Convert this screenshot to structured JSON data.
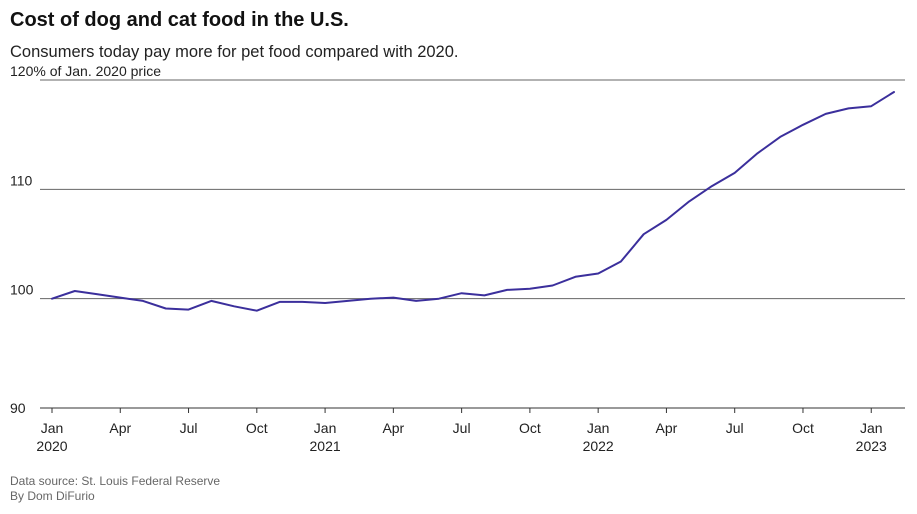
{
  "title": "Cost of dog and cat food in the U.S.",
  "subtitle": "Consumers today pay more for pet food compared with 2020.",
  "footer": {
    "source": "Data source: St. Louis Federal Reserve",
    "author": "By Dom DiFurio"
  },
  "colors": {
    "line": "#3b2f9c",
    "grid": "#666666",
    "text": "#222222"
  },
  "chart_data": {
    "type": "line",
    "title": "Cost of dog and cat food in the U.S.",
    "subtitle": "Consumers today pay more for pet food compared with 2020.",
    "ylabel": "",
    "ylim": [
      90,
      120
    ],
    "y_ticks": [
      {
        "value": 90,
        "label": "90"
      },
      {
        "value": 100,
        "label": "100"
      },
      {
        "value": 110,
        "label": "110"
      },
      {
        "value": 120,
        "label": "120% of Jan. 2020 price"
      }
    ],
    "x_ticks": [
      {
        "date": "2020-01",
        "label": "Jan",
        "year": "2020"
      },
      {
        "date": "2020-04",
        "label": "Apr",
        "year": ""
      },
      {
        "date": "2020-07",
        "label": "Jul",
        "year": ""
      },
      {
        "date": "2020-10",
        "label": "Oct",
        "year": ""
      },
      {
        "date": "2021-01",
        "label": "Jan",
        "year": "2021"
      },
      {
        "date": "2021-04",
        "label": "Apr",
        "year": ""
      },
      {
        "date": "2021-07",
        "label": "Jul",
        "year": ""
      },
      {
        "date": "2021-10",
        "label": "Oct",
        "year": ""
      },
      {
        "date": "2022-01",
        "label": "Jan",
        "year": "2022"
      },
      {
        "date": "2022-04",
        "label": "Apr",
        "year": ""
      },
      {
        "date": "2022-07",
        "label": "Jul",
        "year": ""
      },
      {
        "date": "2022-10",
        "label": "Oct",
        "year": ""
      },
      {
        "date": "2023-01",
        "label": "Jan",
        "year": "2023"
      }
    ],
    "grid": true,
    "series": [
      {
        "x": [
          "2020-01",
          "2020-02",
          "2020-03",
          "2020-04",
          "2020-05",
          "2020-06",
          "2020-07",
          "2020-08",
          "2020-09",
          "2020-10",
          "2020-11",
          "2020-12",
          "2021-01",
          "2021-02",
          "2021-03",
          "2021-04",
          "2021-05",
          "2021-06",
          "2021-07",
          "2021-08",
          "2021-09",
          "2021-10",
          "2021-11",
          "2021-12",
          "2022-01",
          "2022-02",
          "2022-03",
          "2022-04",
          "2022-05",
          "2022-06",
          "2022-07",
          "2022-08",
          "2022-09",
          "2022-10",
          "2022-11",
          "2022-12",
          "2023-01",
          "2023-02"
        ],
        "values": [
          100.0,
          100.7,
          100.4,
          100.1,
          99.8,
          99.1,
          99.0,
          99.8,
          99.3,
          98.9,
          99.7,
          99.7,
          99.6,
          99.8,
          100.0,
          100.1,
          99.8,
          100.0,
          100.5,
          100.3,
          100.8,
          100.9,
          101.2,
          102.0,
          102.3,
          103.4,
          105.9,
          107.2,
          108.9,
          110.3,
          111.5,
          113.3,
          114.8,
          115.9,
          116.9,
          117.4,
          117.6,
          118.9
        ]
      }
    ]
  }
}
